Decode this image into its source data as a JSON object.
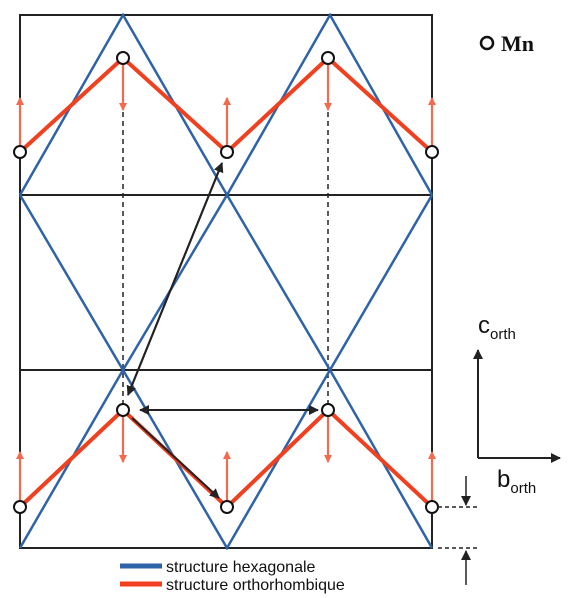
{
  "legend": {
    "mn_label": "Mn",
    "items": [
      {
        "label": "structure hexagonale",
        "color": "#2f63a8"
      },
      {
        "label": "structure orthorhombique",
        "color": "#f0401f"
      }
    ]
  },
  "axes": {
    "c": {
      "main": "c",
      "sub": "orth"
    },
    "b": {
      "main": "b",
      "sub": "orth"
    }
  },
  "colors": {
    "frame": "#222222",
    "hexagonal": "#2f63a8",
    "orthorhombic": "#f0401f",
    "spin_arrow": "#f46a4e",
    "arrow": "#222222"
  }
}
